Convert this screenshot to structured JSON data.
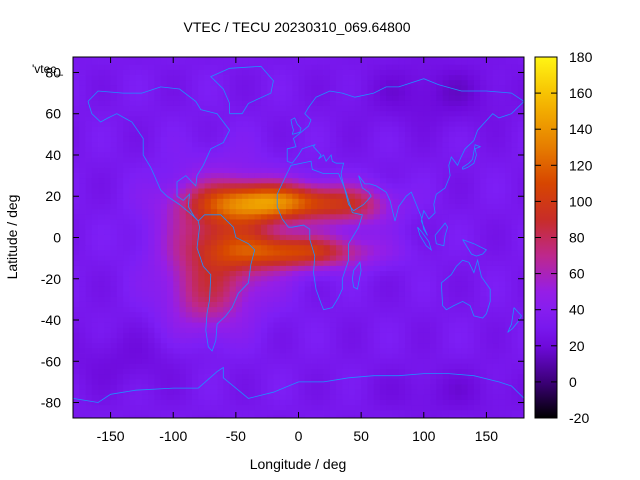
{
  "chart_data": {
    "type": "heatmap",
    "title": "VTEC / TECU 20230310_069.64800",
    "xlabel": "Longitude / deg",
    "ylabel": "Latitude / deg",
    "series_label": "'vtec_",
    "xlim": [
      -180,
      180
    ],
    "ylim": [
      -87.5,
      87.5
    ],
    "xticks": [
      "-150",
      "-100",
      "-50",
      "0",
      "50",
      "100",
      "150"
    ],
    "xtick_values": [
      -150,
      -100,
      -50,
      0,
      50,
      100,
      150
    ],
    "yticks": [
      "80",
      "60",
      "40",
      "20",
      "0",
      "-20",
      "-40",
      "-60",
      "-80"
    ],
    "ytick_values": [
      80,
      60,
      40,
      20,
      0,
      -20,
      -40,
      -60,
      -80
    ],
    "colorbar": {
      "min": -20,
      "max": 180,
      "ticks": [
        "180",
        "160",
        "140",
        "120",
        "100",
        "80",
        "60",
        "40",
        "20",
        "0",
        "-20"
      ],
      "tick_values": [
        180,
        160,
        140,
        120,
        100,
        80,
        60,
        40,
        20,
        0,
        -20
      ]
    },
    "grid": {
      "lon_step": 5,
      "lat_step": 2.5,
      "lat_from": 87.5,
      "lat_to": -87.5
    },
    "background_tecu": 30,
    "features": [
      {
        "name": "equatorial-anomaly-north",
        "lon": -20,
        "lat": 17,
        "lon_width": 55,
        "lat_width": 9,
        "tecu": 95
      },
      {
        "name": "equatorial-anomaly-south",
        "lon": 0,
        "lat": -7,
        "lon_width": 55,
        "lat_width": 8,
        "tecu": 70
      },
      {
        "name": "atlantic-bulge",
        "lon": -60,
        "lat": 0,
        "lon_width": 45,
        "lat_width": 28,
        "tecu": 58
      },
      {
        "name": "south-america-tail",
        "lon": -75,
        "lat": -30,
        "lon_width": 30,
        "lat_width": 18,
        "tecu": 30
      },
      {
        "name": "europe-africa-tongue",
        "lon": 45,
        "lat": 15,
        "lon_width": 30,
        "lat_width": 10,
        "tecu": 35
      },
      {
        "name": "north-asia-depletion",
        "lon": 110,
        "lat": 70,
        "lon_width": 60,
        "lat_width": 15,
        "tecu": -12
      },
      {
        "name": "south-polar-depletion",
        "lon": -140,
        "lat": -60,
        "lon_width": 50,
        "lat_width": 15,
        "tecu": -8
      },
      {
        "name": "east-pacific-south-depletion",
        "lon": 120,
        "lat": -75,
        "lon_width": 60,
        "lat_width": 12,
        "tecu": -8
      }
    ]
  }
}
